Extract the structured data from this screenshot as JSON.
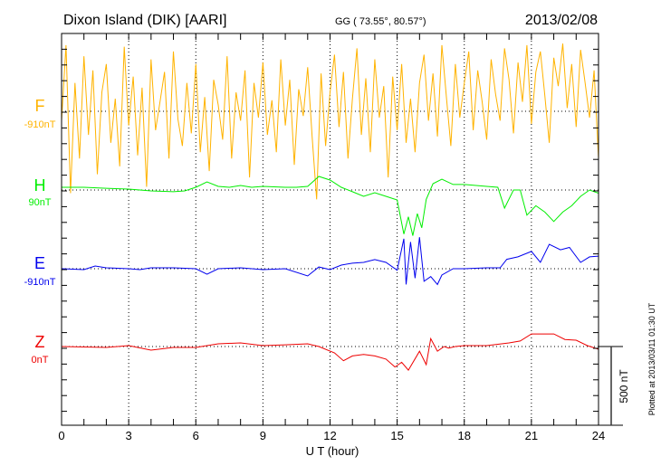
{
  "header": {
    "title": "Dixon Island (DIK)  [AARI]",
    "coords": "GG ( 73.55°,  80.57°)",
    "date": "2013/02/08"
  },
  "footer": {
    "plotted": "Plotted at 2013/03/11 01:30 UT"
  },
  "chart_data": {
    "type": "line",
    "title": "Dixon Island (DIK)  [AARI]",
    "xlabel": "U T (hour)",
    "xlim": [
      0,
      24
    ],
    "xticks": [
      "0",
      "3",
      "6",
      "9",
      "12",
      "15",
      "18",
      "21",
      "24"
    ],
    "scale_bar": {
      "label": "500 nT",
      "value": 500
    },
    "grid": "dotted vertical every 3 h, dotted baseline per component",
    "series": [
      {
        "name": "F",
        "baseline_label": "-910nT",
        "color": "#ffb300",
        "step": 0.2,
        "values": [
          -60,
          420,
          -520,
          180,
          -300,
          350,
          -150,
          260,
          -400,
          120,
          300,
          -200,
          80,
          -350,
          410,
          -90,
          220,
          -280,
          150,
          -480,
          330,
          -120,
          60,
          250,
          -300,
          380,
          -50,
          -220,
          180,
          -140,
          300,
          -260,
          90,
          -380,
          200,
          40,
          -180,
          350,
          -300,
          120,
          -60,
          260,
          -420,
          180,
          -40,
          310,
          -150,
          70,
          -260,
          330,
          -90,
          200,
          -340,
          140,
          -30,
          280,
          -160,
          -560,
          240,
          -220,
          120,
          360,
          -100,
          250,
          -300,
          80,
          400,
          -150,
          210,
          -260,
          330,
          -40,
          160,
          -420,
          220,
          -120,
          300,
          -200,
          80,
          -260,
          180,
          360,
          -60,
          240,
          -160,
          420,
          90,
          -220,
          300,
          -40,
          180,
          380,
          -120,
          260,
          60,
          -180,
          330,
          110,
          -60,
          400,
          200,
          -140,
          310,
          60,
          420,
          -80,
          250,
          380,
          100,
          -200,
          340,
          160,
          430,
          20,
          300,
          -100,
          390,
          180,
          -40,
          260,
          -300
        ]
      },
      {
        "name": "H",
        "baseline_label": "90nT",
        "color": "#00ee00",
        "points": [
          [
            0,
            17
          ],
          [
            1,
            17
          ],
          [
            2,
            11
          ],
          [
            3,
            6
          ],
          [
            3.5,
            0
          ],
          [
            4,
            -6
          ],
          [
            5,
            -11
          ],
          [
            5.5,
            -6
          ],
          [
            6,
            17
          ],
          [
            6.5,
            52
          ],
          [
            7,
            23
          ],
          [
            7.5,
            17
          ],
          [
            8,
            29
          ],
          [
            8.5,
            17
          ],
          [
            9,
            23
          ],
          [
            10,
            17
          ],
          [
            10.5,
            17
          ],
          [
            11,
            23
          ],
          [
            11.5,
            86
          ],
          [
            12,
            63
          ],
          [
            12.5,
            17
          ],
          [
            13,
            -11
          ],
          [
            13.5,
            -40
          ],
          [
            14,
            -17
          ],
          [
            14.5,
            -40
          ],
          [
            15,
            -63
          ],
          [
            15.3,
            -280
          ],
          [
            15.5,
            -170
          ],
          [
            15.7,
            -290
          ],
          [
            15.9,
            -150
          ],
          [
            16.1,
            -240
          ],
          [
            16.3,
            -60
          ],
          [
            16.6,
            40
          ],
          [
            17,
            69
          ],
          [
            17.5,
            35
          ],
          [
            18,
            35
          ],
          [
            19,
            23
          ],
          [
            19.5,
            17
          ],
          [
            19.8,
            -115
          ],
          [
            20.2,
            0
          ],
          [
            20.5,
            0
          ],
          [
            20.8,
            -160
          ],
          [
            21.2,
            -100
          ],
          [
            21.6,
            -140
          ],
          [
            22,
            -200
          ],
          [
            22.4,
            -140
          ],
          [
            22.8,
            -100
          ],
          [
            23.2,
            -40
          ],
          [
            23.6,
            0
          ],
          [
            24,
            -20
          ]
        ]
      },
      {
        "name": "E",
        "baseline_label": "-910nT",
        "color": "#0000ee",
        "points": [
          [
            0,
            0
          ],
          [
            1,
            -6
          ],
          [
            1.5,
            17
          ],
          [
            2,
            6
          ],
          [
            3,
            0
          ],
          [
            3.5,
            -6
          ],
          [
            4,
            6
          ],
          [
            5,
            6
          ],
          [
            6,
            0
          ],
          [
            6.5,
            -35
          ],
          [
            7,
            0
          ],
          [
            8,
            6
          ],
          [
            9,
            -6
          ],
          [
            10,
            0
          ],
          [
            11,
            -46
          ],
          [
            11.5,
            11
          ],
          [
            12,
            -6
          ],
          [
            12.5,
            23
          ],
          [
            13,
            35
          ],
          [
            13.5,
            40
          ],
          [
            14,
            58
          ],
          [
            14.5,
            40
          ],
          [
            15,
            -10
          ],
          [
            15.3,
            190
          ],
          [
            15.4,
            -100
          ],
          [
            15.6,
            170
          ],
          [
            15.8,
            -60
          ],
          [
            16,
            200
          ],
          [
            16.2,
            -80
          ],
          [
            16.5,
            -50
          ],
          [
            16.8,
            -100
          ],
          [
            17,
            -40
          ],
          [
            17.5,
            0
          ],
          [
            18,
            0
          ],
          [
            19,
            6
          ],
          [
            19.6,
            6
          ],
          [
            19.9,
            60
          ],
          [
            20.4,
            75
          ],
          [
            21,
            110
          ],
          [
            21.4,
            40
          ],
          [
            21.8,
            155
          ],
          [
            22.3,
            120
          ],
          [
            22.7,
            135
          ],
          [
            23.2,
            40
          ],
          [
            23.6,
            75
          ],
          [
            24,
            80
          ]
        ]
      },
      {
        "name": "Z",
        "baseline_label": "0nT",
        "color": "#ee0000",
        "points": [
          [
            0,
            0
          ],
          [
            2,
            -6
          ],
          [
            3,
            6
          ],
          [
            4,
            -23
          ],
          [
            5,
            -6
          ],
          [
            6,
            -6
          ],
          [
            7,
            17
          ],
          [
            8,
            23
          ],
          [
            9,
            6
          ],
          [
            10,
            11
          ],
          [
            11,
            17
          ],
          [
            11.5,
            0
          ],
          [
            12.2,
            -40
          ],
          [
            12.6,
            -90
          ],
          [
            13,
            -60
          ],
          [
            13.5,
            -50
          ],
          [
            14,
            -60
          ],
          [
            14.5,
            -80
          ],
          [
            14.9,
            -130
          ],
          [
            15.2,
            -100
          ],
          [
            15.5,
            -150
          ],
          [
            16,
            -30
          ],
          [
            16.3,
            -115
          ],
          [
            16.5,
            50
          ],
          [
            16.8,
            -30
          ],
          [
            17.1,
            0
          ],
          [
            17.3,
            -10
          ],
          [
            17.6,
            0
          ],
          [
            18,
            6
          ],
          [
            19,
            6
          ],
          [
            20,
            23
          ],
          [
            20.5,
            35
          ],
          [
            21,
            80
          ],
          [
            21.5,
            80
          ],
          [
            22,
            80
          ],
          [
            22.5,
            45
          ],
          [
            23,
            40
          ],
          [
            23.5,
            6
          ],
          [
            24,
            -17
          ]
        ]
      }
    ]
  }
}
